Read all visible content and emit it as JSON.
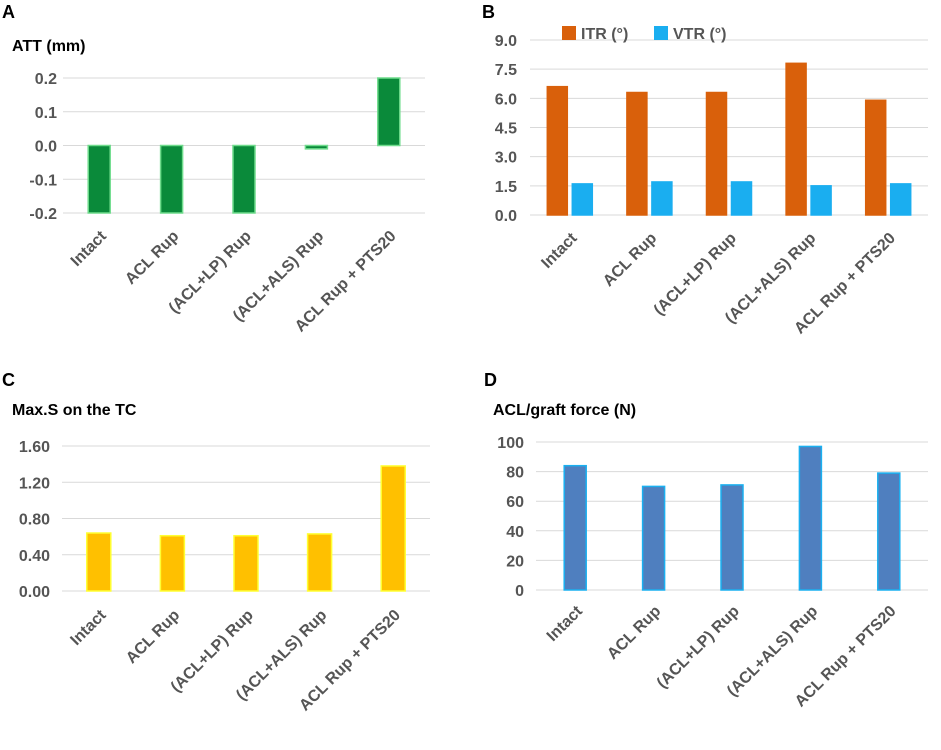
{
  "chart_data": [
    {
      "panel": "A",
      "type": "bar",
      "title": "ATT (mm)",
      "categories": [
        "Intact",
        "ACL Rup",
        "(ACL+LP) Rup",
        "(ACL+ALS) Rup",
        "ACL Rup + PTS20"
      ],
      "series": [
        {
          "name": "ATT",
          "values": [
            -0.2,
            -0.2,
            -0.2,
            -0.01,
            0.2
          ],
          "color": "#0a8a3a",
          "border": "#6fdc8c"
        }
      ],
      "yticks": [
        -0.2,
        -0.1,
        0.0,
        0.1,
        0.2
      ],
      "ytick_labels": [
        "-0.2",
        "-0.1",
        "0.0",
        "0.1",
        "0.2"
      ],
      "ylim": [
        -0.2,
        0.2
      ],
      "grid": true
    },
    {
      "panel": "B",
      "type": "bar",
      "title": "",
      "categories": [
        "Intact",
        "ACL Rup",
        "(ACL+LP) Rup",
        "(ACL+ALS) Rup",
        "ACL Rup + PTS20"
      ],
      "series": [
        {
          "name": "ITR (°)",
          "values": [
            6.6,
            6.3,
            6.3,
            7.8,
            5.9
          ],
          "color": "#d9600b",
          "border": "#d9600b"
        },
        {
          "name": "VTR (°)",
          "values": [
            1.6,
            1.7,
            1.7,
            1.5,
            1.6
          ],
          "color": "#1aaef0",
          "border": "#1aaef0"
        }
      ],
      "yticks": [
        0,
        1.5,
        3.0,
        4.5,
        6.0,
        7.5,
        9.0
      ],
      "ytick_labels": [
        "0.0",
        "1.5",
        "3.0",
        "4.5",
        "6.0",
        "7.5",
        "9.0"
      ],
      "ylim": [
        0,
        9.0
      ],
      "legend": "top",
      "grid": true
    },
    {
      "panel": "C",
      "type": "bar",
      "title": "Max.S on the TC",
      "categories": [
        "Intact",
        "ACL Rup",
        "(ACL+LP) Rup",
        "(ACL+ALS) Rup",
        "ACL Rup + PTS20"
      ],
      "series": [
        {
          "name": "Max.S",
          "values": [
            0.64,
            0.61,
            0.61,
            0.63,
            1.38
          ],
          "color": "#ffc000",
          "border": "#ffff33"
        }
      ],
      "yticks": [
        0,
        0.4,
        0.8,
        1.2,
        1.6
      ],
      "ytick_labels": [
        "0.00",
        "0.40",
        "0.80",
        "1.20",
        "1.60"
      ],
      "ylim": [
        0,
        1.6
      ],
      "grid": true
    },
    {
      "panel": "D",
      "type": "bar",
      "title": "ACL/graft force (N)",
      "categories": [
        "Intact",
        "ACL Rup",
        "(ACL+LP) Rup",
        "(ACL+ALS) Rup",
        "ACL Rup + PTS20"
      ],
      "series": [
        {
          "name": "ACL/graft force",
          "values": [
            84,
            70,
            71,
            97,
            79
          ],
          "color": "#4f7fbf",
          "border": "#1ab0f0"
        }
      ],
      "yticks": [
        0,
        20,
        40,
        60,
        80,
        100
      ],
      "ytick_labels": [
        "0",
        "20",
        "40",
        "60",
        "80",
        "100"
      ],
      "ylim": [
        0,
        100
      ],
      "grid": true
    }
  ]
}
